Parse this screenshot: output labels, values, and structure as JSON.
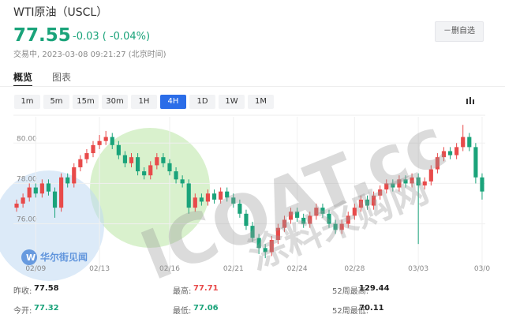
{
  "header": {
    "title": "WTI原油（USCL）",
    "price": "77.55",
    "change": "-0.03 ( -0.04%)",
    "status": "交易中, 2023-03-08 09:21:27 (北京时间)",
    "button": "－删自选"
  },
  "tabs": [
    "概览",
    "图表"
  ],
  "active_tab": 0,
  "periods": [
    "1m",
    "5m",
    "15m",
    "30m",
    "1H",
    "4H",
    "1D",
    "1W",
    "1M"
  ],
  "selected_period": 5,
  "watermark": {
    "brand": "ICOAT.cc",
    "brand_cn": "涂料采购网",
    "logo": "华尔街见闻"
  },
  "chart_data": {
    "type": "candlestick",
    "categories": [
      null,
      null,
      null,
      "02/09",
      null,
      null,
      null,
      null,
      null,
      null,
      null,
      null,
      null,
      "02/13",
      null,
      null,
      null,
      null,
      null,
      null,
      null,
      null,
      null,
      null,
      "02/16",
      null,
      null,
      null,
      null,
      null,
      null,
      null,
      null,
      null,
      "02/21",
      null,
      null,
      null,
      null,
      null,
      null,
      null,
      null,
      null,
      "02/24",
      null,
      null,
      null,
      null,
      null,
      null,
      null,
      null,
      "02/28",
      null,
      null,
      null,
      null,
      null,
      null,
      null,
      null,
      null,
      "03/03",
      null,
      null,
      null,
      null,
      null,
      null,
      null,
      null,
      null,
      "03/0"
    ],
    "open": [
      76.8,
      77.0,
      77.3,
      77.8,
      77.5,
      78.0,
      77.6,
      76.8,
      78.3,
      78.0,
      78.8,
      79.2,
      79.5,
      79.9,
      80.1,
      80.3,
      79.9,
      79.4,
      79.0,
      79.3,
      78.6,
      78.4,
      78.9,
      79.3,
      79.0,
      78.6,
      78.2,
      78.0,
      76.8,
      77.3,
      77.1,
      77.5,
      77.2,
      77.6,
      77.3,
      77.0,
      76.5,
      75.9,
      75.3,
      74.8,
      74.6,
      75.2,
      75.8,
      76.2,
      76.6,
      76.3,
      76.0,
      76.4,
      76.8,
      76.5,
      76.0,
      75.7,
      76.0,
      76.4,
      76.8,
      77.2,
      76.9,
      77.4,
      77.7,
      78.0,
      77.8,
      78.2,
      78.0,
      78.3,
      77.9,
      78.1,
      78.7,
      79.3,
      79.6,
      79.4,
      79.8,
      80.3,
      79.8,
      78.3
    ],
    "high": [
      77.2,
      77.5,
      78.0,
      78.0,
      78.2,
      78.2,
      77.8,
      78.5,
      78.5,
      79.0,
      79.4,
      79.7,
      80.1,
      80.4,
      80.6,
      80.5,
      80.1,
      79.6,
      79.5,
      79.5,
      78.8,
      79.1,
      79.5,
      79.5,
      79.2,
      78.8,
      78.4,
      78.2,
      77.5,
      77.5,
      77.7,
      77.7,
      77.8,
      77.8,
      77.5,
      77.2,
      76.7,
      76.1,
      75.5,
      75.0,
      75.4,
      76.0,
      76.4,
      76.8,
      76.8,
      76.5,
      76.6,
      77.0,
      77.0,
      76.7,
      76.2,
      76.2,
      76.6,
      77.0,
      77.4,
      77.4,
      77.6,
      77.9,
      78.2,
      78.2,
      78.4,
      78.4,
      78.5,
      78.5,
      78.3,
      78.9,
      79.5,
      79.8,
      79.8,
      80.0,
      80.9,
      80.5,
      80.0,
      78.5
    ],
    "low": [
      76.6,
      76.8,
      77.1,
      77.3,
      77.3,
      77.4,
      76.3,
      76.6,
      77.8,
      77.8,
      78.6,
      79.0,
      79.3,
      79.7,
      79.9,
      79.7,
      79.2,
      78.8,
      78.8,
      78.4,
      78.2,
      78.2,
      78.7,
      78.8,
      78.4,
      78.0,
      77.8,
      76.5,
      76.6,
      76.9,
      76.9,
      77.0,
      77.0,
      77.1,
      76.8,
      76.3,
      75.7,
      75.1,
      74.5,
      74.3,
      74.4,
      75.0,
      75.6,
      76.0,
      76.1,
      75.8,
      75.8,
      76.2,
      76.3,
      75.8,
      75.5,
      75.5,
      75.8,
      76.2,
      76.6,
      76.7,
      76.7,
      77.2,
      77.5,
      77.6,
      77.6,
      77.8,
      77.8,
      75.0,
      77.7,
      77.9,
      78.5,
      79.1,
      79.2,
      79.2,
      79.6,
      79.6,
      78.0,
      77.2
    ],
    "close": [
      77.0,
      77.3,
      77.8,
      77.5,
      78.0,
      77.6,
      76.8,
      78.3,
      78.0,
      78.8,
      79.2,
      79.5,
      79.9,
      80.1,
      80.3,
      79.9,
      79.4,
      79.0,
      79.3,
      78.6,
      78.4,
      78.9,
      79.3,
      79.0,
      78.6,
      78.2,
      78.0,
      76.8,
      77.3,
      77.1,
      77.5,
      77.2,
      77.6,
      77.3,
      77.0,
      76.5,
      75.9,
      75.3,
      74.8,
      74.6,
      75.2,
      75.8,
      76.2,
      76.6,
      76.3,
      76.0,
      76.4,
      76.8,
      76.5,
      76.0,
      75.7,
      76.0,
      76.4,
      76.8,
      77.2,
      76.9,
      77.4,
      77.7,
      78.0,
      77.8,
      78.2,
      78.0,
      78.3,
      77.9,
      78.1,
      78.7,
      79.3,
      79.6,
      79.4,
      79.8,
      80.3,
      79.8,
      78.3,
      77.6
    ],
    "up_color": "#e84a4a",
    "down_color": "#1aa37a",
    "ylim": [
      73.6,
      81.3
    ],
    "yticks": [
      {
        "value": 80,
        "label": "80.00"
      },
      {
        "value": 78,
        "label": "78.00"
      },
      {
        "value": 76,
        "label": "76.00"
      }
    ],
    "grid": true
  },
  "stats": [
    {
      "label": "昨收:",
      "value": "77.58",
      "color": "#222"
    },
    {
      "label": "最高:",
      "value": "77.71",
      "color": "#e84a4a"
    },
    {
      "label": "52周最高:",
      "value": "129.44",
      "color": "#222"
    },
    {
      "label": "今开:",
      "value": "77.32",
      "color": "#1aa37a"
    },
    {
      "label": "最低:",
      "value": "77.06",
      "color": "#1aa37a"
    },
    {
      "label": "52周最低:",
      "value": "70.11",
      "color": "#222"
    }
  ]
}
